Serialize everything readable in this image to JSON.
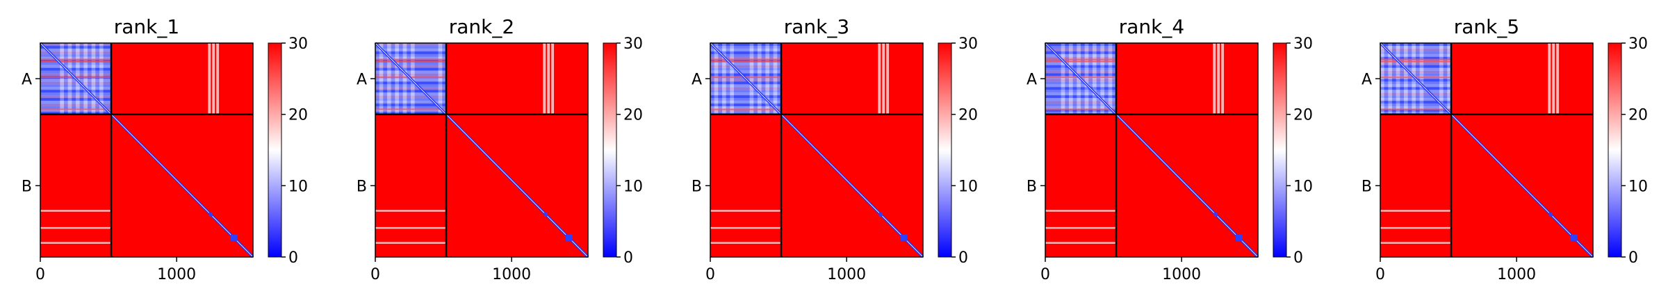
{
  "chart_data": [
    {
      "type": "heatmap",
      "title": "rank_1",
      "xlabel": "",
      "ylabel": "",
      "chains": [
        "A",
        "B"
      ],
      "chain_boundary": 520,
      "xlim": [
        0,
        1560
      ],
      "ylim": [
        0,
        1560
      ],
      "x_ticks": [
        0,
        1000
      ],
      "x_tick_labels": [
        "0",
        "1000"
      ],
      "colorbar": {
        "vmin": 0,
        "vmax": 30,
        "ticks": [
          0,
          10,
          20,
          30
        ],
        "tick_labels": [
          "0",
          "10",
          "20",
          "30"
        ],
        "colormap": "bwr"
      }
    },
    {
      "type": "heatmap",
      "title": "rank_2",
      "xlabel": "",
      "ylabel": "",
      "chains": [
        "A",
        "B"
      ],
      "chain_boundary": 520,
      "xlim": [
        0,
        1560
      ],
      "ylim": [
        0,
        1560
      ],
      "x_ticks": [
        0,
        1000
      ],
      "x_tick_labels": [
        "0",
        "1000"
      ],
      "colorbar": {
        "vmin": 0,
        "vmax": 30,
        "ticks": [
          0,
          10,
          20,
          30
        ],
        "tick_labels": [
          "0",
          "10",
          "20",
          "30"
        ],
        "colormap": "bwr"
      }
    },
    {
      "type": "heatmap",
      "title": "rank_3",
      "xlabel": "",
      "ylabel": "",
      "chains": [
        "A",
        "B"
      ],
      "chain_boundary": 520,
      "xlim": [
        0,
        1560
      ],
      "ylim": [
        0,
        1560
      ],
      "x_ticks": [
        0,
        1000
      ],
      "x_tick_labels": [
        "0",
        "1000"
      ],
      "colorbar": {
        "vmin": 0,
        "vmax": 30,
        "ticks": [
          0,
          10,
          20,
          30
        ],
        "tick_labels": [
          "0",
          "10",
          "20",
          "30"
        ],
        "colormap": "bwr"
      }
    },
    {
      "type": "heatmap",
      "title": "rank_4",
      "xlabel": "",
      "ylabel": "",
      "chains": [
        "A",
        "B"
      ],
      "chain_boundary": 520,
      "xlim": [
        0,
        1560
      ],
      "ylim": [
        0,
        1560
      ],
      "x_ticks": [
        0,
        1000
      ],
      "x_tick_labels": [
        "0",
        "1000"
      ],
      "colorbar": {
        "vmin": 0,
        "vmax": 30,
        "ticks": [
          0,
          10,
          20,
          30
        ],
        "tick_labels": [
          "0",
          "10",
          "20",
          "30"
        ],
        "colormap": "bwr"
      }
    },
    {
      "type": "heatmap",
      "title": "rank_5",
      "xlabel": "",
      "ylabel": "",
      "chains": [
        "A",
        "B"
      ],
      "chain_boundary": 520,
      "xlim": [
        0,
        1560
      ],
      "ylim": [
        0,
        1560
      ],
      "x_ticks": [
        0,
        1000
      ],
      "x_tick_labels": [
        "0",
        "1000"
      ],
      "colorbar": {
        "vmin": 0,
        "vmax": 30,
        "ticks": [
          0,
          10,
          20,
          30
        ],
        "tick_labels": [
          "0",
          "10",
          "20",
          "30"
        ],
        "colormap": "bwr"
      }
    }
  ],
  "colors": {
    "low": "#0000ff",
    "mid": "#ffffff",
    "high": "#ff0000",
    "boundary_line": "#000000"
  }
}
